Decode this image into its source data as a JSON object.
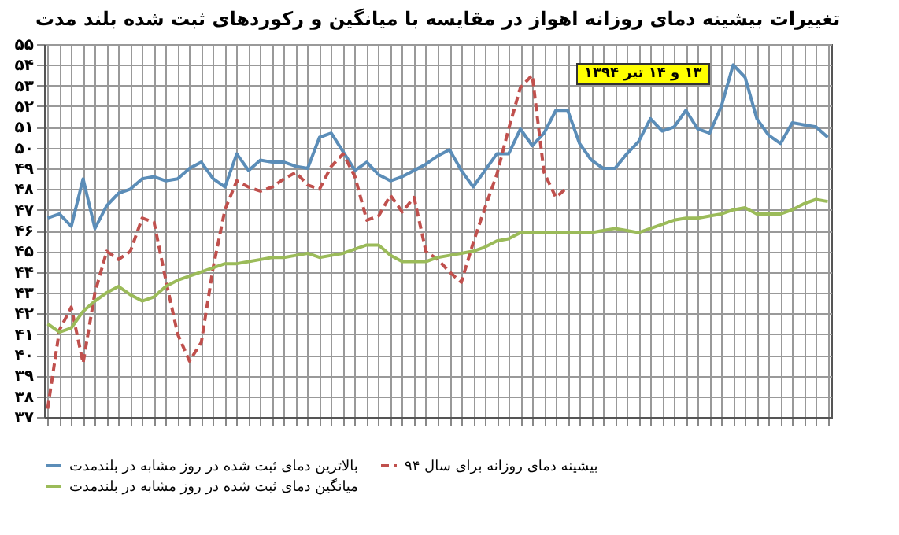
{
  "chart_data": {
    "type": "line",
    "title": "تغییرات بیشینه دمای روزانه اهواز در مقایسه با میانگین و رکوردهای ثبت شده بلند مدت",
    "annotations": [
      "۱۳ و ۱۴ تیر ۱۳۹۴"
    ],
    "categories": [
      null,
      null,
      null,
      null,
      null,
      null,
      null,
      null,
      null,
      null,
      null,
      null,
      null,
      null,
      null,
      null,
      null,
      null,
      null,
      null,
      null,
      null,
      null,
      null,
      null,
      null,
      null,
      null,
      null,
      null,
      null,
      null,
      null,
      null,
      null,
      null,
      null,
      null,
      null,
      null,
      null,
      null,
      null,
      null,
      null,
      null,
      null,
      null,
      null,
      null,
      null,
      null,
      null,
      null,
      null,
      null,
      null,
      null,
      null,
      null,
      null,
      null,
      null,
      null,
      null,
      null,
      null
    ],
    "series": [
      {
        "name": "بالاترین دمای ثبت شده در روز مشابه در بلندمدت",
        "color": "#5b8db8",
        "line_style": "solid",
        "values": [
          46.6,
          46.8,
          46.2,
          48.5,
          46.1,
          47.2,
          47.8,
          48.0,
          48.5,
          48.6,
          48.4,
          48.5,
          49.0,
          49.3,
          48.5,
          48.1,
          49.7,
          48.9,
          49.4,
          49.3,
          49.3,
          49.1,
          49.0,
          50.5,
          50.7,
          49.8,
          48.9,
          49.3,
          48.7,
          48.4,
          48.6,
          48.9,
          49.2,
          49.6,
          49.9,
          48.9,
          48.1,
          48.9,
          49.7,
          49.7,
          50.9,
          50.1,
          50.7,
          51.8,
          51.8,
          50.2,
          49.4,
          49.0,
          49.0,
          49.7,
          50.3,
          51.4,
          50.8,
          51.0,
          51.8,
          50.9,
          50.7,
          52.0,
          54.0,
          53.4,
          51.4,
          50.6,
          50.2,
          51.2,
          51.1,
          51.0,
          50.5
        ]
      },
      {
        "name": "بیشینه دمای روزانه برای سال ۹۴",
        "color": "#c0504d",
        "line_style": "dashed",
        "values": [
          37.4,
          41.2,
          42.3,
          39.6,
          43.0,
          45.0,
          44.6,
          45.0,
          46.6,
          46.4,
          43.6,
          41.0,
          39.7,
          40.6,
          44.2,
          47.0,
          48.4,
          48.1,
          47.9,
          48.1,
          48.5,
          48.8,
          48.2,
          48.0,
          49.1,
          49.7,
          48.6,
          46.5,
          46.7,
          47.7,
          46.9,
          47.6,
          45.0,
          44.6,
          44.0,
          43.5,
          45.4,
          47.1,
          48.7,
          50.9,
          52.9,
          53.5,
          48.8,
          47.6,
          48.1,
          null,
          null,
          null,
          null,
          null,
          null,
          null,
          null,
          null,
          null,
          null,
          null,
          null,
          null,
          null,
          null,
          null,
          null,
          null,
          null,
          null,
          null
        ]
      },
      {
        "name": "میانگین دمای ثبت شده در روز مشابه در بلندمدت",
        "color": "#9bbb59",
        "line_style": "solid",
        "values": [
          41.5,
          41.1,
          41.3,
          42.1,
          42.6,
          43.0,
          43.3,
          42.9,
          42.6,
          42.8,
          43.3,
          43.6,
          43.8,
          44.0,
          44.2,
          44.4,
          44.4,
          44.5,
          44.6,
          44.7,
          44.7,
          44.8,
          44.9,
          44.7,
          44.8,
          44.9,
          45.1,
          45.3,
          45.3,
          44.8,
          44.5,
          44.5,
          44.5,
          44.7,
          44.8,
          44.9,
          45.0,
          45.2,
          45.5,
          45.6,
          45.9,
          45.9,
          45.9,
          45.9,
          45.9,
          45.9,
          45.9,
          46.0,
          46.1,
          46.0,
          45.9,
          46.1,
          46.3,
          46.5,
          46.6,
          46.6,
          46.7,
          46.8,
          47.0,
          47.1,
          46.8,
          46.8,
          46.8,
          47.0,
          47.3,
          47.5,
          47.4
        ]
      }
    ],
    "ylim": [
      37,
      55
    ],
    "yticks": [
      {
        "value": 37,
        "label": "۳۷"
      },
      {
        "value": 38,
        "label": "۳۸"
      },
      {
        "value": 39,
        "label": "۳۹"
      },
      {
        "value": 40,
        "label": "۴۰"
      },
      {
        "value": 41,
        "label": "۴۱"
      },
      {
        "value": 42,
        "label": "۴۲"
      },
      {
        "value": 43,
        "label": "۴۳"
      },
      {
        "value": 44,
        "label": "۴۴"
      },
      {
        "value": 45,
        "label": "۴۵"
      },
      {
        "value": 46,
        "label": "۴۶"
      },
      {
        "value": 47,
        "label": "۴۷"
      },
      {
        "value": 48,
        "label": "۴۸"
      },
      {
        "value": 49,
        "label": "۴۹"
      },
      {
        "value": 50,
        "label": "۵۰"
      },
      {
        "value": 51,
        "label": "۵۱"
      },
      {
        "value": 52,
        "label": "۵۲"
      },
      {
        "value": 53,
        "label": "۵۳"
      },
      {
        "value": 54,
        "label": "۵۴"
      },
      {
        "value": 55,
        "label": "۵۵"
      }
    ],
    "grid": true,
    "legend": "bottom",
    "marker": "none"
  }
}
